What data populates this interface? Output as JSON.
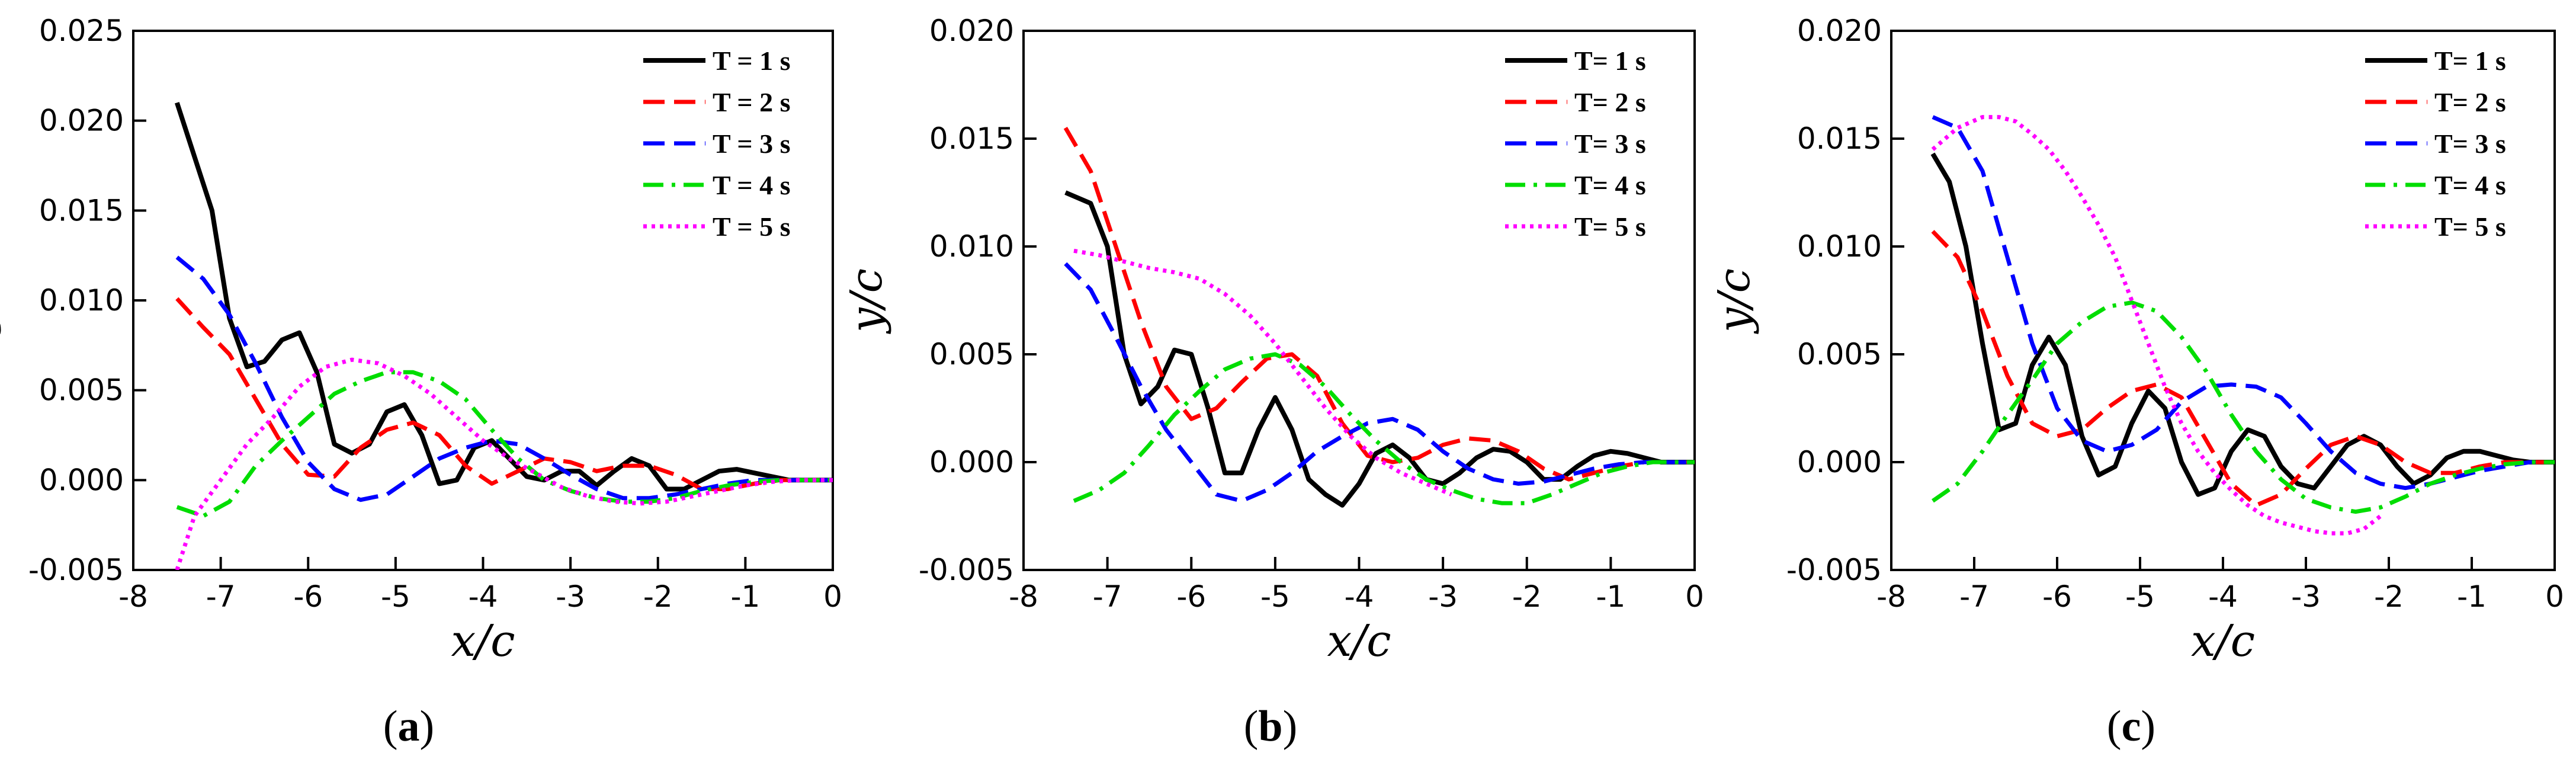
{
  "chart_data": [
    {
      "panel_label": "a",
      "type": "line",
      "xlabel": "x/c",
      "ylabel": "y/c",
      "xlim": [
        -8,
        0
      ],
      "ylim": [
        -0.005,
        0.025
      ],
      "xticks": [
        "-8",
        "-7",
        "-6",
        "-5",
        "-4",
        "-3",
        "-2",
        "-1",
        "0"
      ],
      "yticks": [
        "-0.005",
        "0.000",
        "0.005",
        "0.010",
        "0.015",
        "0.020",
        "0.025"
      ],
      "legend_location": "top-right",
      "series": [
        {
          "name": "T = 1 s",
          "color": "#000000",
          "style": "solid",
          "x": [
            -7.5,
            -7.3,
            -7.1,
            -6.9,
            -6.7,
            -6.5,
            -6.3,
            -6.1,
            -5.9,
            -5.7,
            -5.5,
            -5.3,
            -5.1,
            -4.9,
            -4.7,
            -4.5,
            -4.3,
            -4.1,
            -3.9,
            -3.7,
            -3.5,
            -3.3,
            -3.1,
            -2.9,
            -2.7,
            -2.5,
            -2.3,
            -2.1,
            -1.9,
            -1.7,
            -1.5,
            -1.3,
            -1.1,
            -0.9,
            -0.7,
            -0.5,
            -0.3,
            0
          ],
          "y": [
            0.021,
            0.018,
            0.015,
            0.009,
            0.0063,
            0.0066,
            0.0078,
            0.0082,
            0.006,
            0.002,
            0.0015,
            0.002,
            0.0038,
            0.0042,
            0.0025,
            -0.0002,
            0.0,
            0.0018,
            0.0022,
            0.0012,
            0.0002,
            0.0,
            0.0005,
            0.0005,
            -0.0003,
            0.0005,
            0.0012,
            0.0008,
            -0.0005,
            -0.0005,
            0.0,
            0.0005,
            0.0006,
            0.0004,
            0.0002,
            0.0,
            0.0,
            0.0
          ]
        },
        {
          "name": "T =  2 s",
          "color": "#ff0000",
          "style": "dashed",
          "x": [
            -7.5,
            -7.2,
            -6.9,
            -6.6,
            -6.3,
            -6.0,
            -5.7,
            -5.4,
            -5.1,
            -4.8,
            -4.5,
            -4.2,
            -3.9,
            -3.6,
            -3.3,
            -3.0,
            -2.7,
            -2.4,
            -2.1,
            -1.8,
            -1.5,
            -1.2,
            -0.9,
            -0.6,
            -0.3,
            0
          ],
          "y": [
            0.0101,
            0.0085,
            0.007,
            0.0045,
            0.002,
            0.0003,
            0.0002,
            0.0018,
            0.0028,
            0.0032,
            0.0025,
            0.0008,
            -0.0002,
            0.0005,
            0.0012,
            0.001,
            0.0005,
            0.0008,
            0.0008,
            0.0003,
            -0.0005,
            -0.0005,
            -0.0002,
            0.0,
            0.0,
            0.0
          ]
        },
        {
          "name": "T =  3 s",
          "color": "#0000ff",
          "style": "dashed",
          "x": [
            -7.5,
            -7.2,
            -6.9,
            -6.6,
            -6.3,
            -6.0,
            -5.7,
            -5.4,
            -5.1,
            -4.8,
            -4.5,
            -4.2,
            -3.9,
            -3.6,
            -3.3,
            -3.0,
            -2.7,
            -2.4,
            -2.1,
            -1.8,
            -1.5,
            -1.2,
            -0.9,
            -0.6,
            -0.3,
            0
          ],
          "y": [
            0.0124,
            0.0112,
            0.0092,
            0.0065,
            0.0035,
            0.001,
            -0.0005,
            -0.0011,
            -0.0008,
            0.0002,
            0.0012,
            0.0018,
            0.0022,
            0.002,
            0.0012,
            0.0003,
            -0.0005,
            -0.001,
            -0.001,
            -0.0008,
            -0.0005,
            -0.0002,
            0.0,
            0.0,
            0.0,
            0.0
          ]
        },
        {
          "name": "T =  4 s",
          "color": "#00dd00",
          "style": "dashdot",
          "x": [
            -7.5,
            -7.2,
            -6.9,
            -6.6,
            -6.3,
            -6.0,
            -5.7,
            -5.4,
            -5.1,
            -4.8,
            -4.5,
            -4.2,
            -3.9,
            -3.6,
            -3.3,
            -3.0,
            -2.7,
            -2.4,
            -2.1,
            -1.8,
            -1.5,
            -1.2,
            -0.9,
            -0.6,
            -0.3,
            0
          ],
          "y": [
            -0.0015,
            -0.002,
            -0.0012,
            0.0008,
            0.0022,
            0.0035,
            0.0048,
            0.0055,
            0.006,
            0.006,
            0.0055,
            0.0045,
            0.0028,
            0.0012,
            0.0,
            -0.0006,
            -0.001,
            -0.0012,
            -0.0012,
            -0.001,
            -0.0006,
            -0.0003,
            -0.0001,
            0.0,
            0.0,
            0.0
          ]
        },
        {
          "name": "T =  5 s",
          "color": "#ff00ff",
          "style": "dotted",
          "x": [
            -7.5,
            -7.3,
            -7.0,
            -6.7,
            -6.4,
            -6.1,
            -5.8,
            -5.5,
            -5.2,
            -4.9,
            -4.6,
            -4.3,
            -4.0,
            -3.7,
            -3.4,
            -3.1,
            -2.8,
            -2.5,
            -2.2,
            -1.9,
            -1.6,
            -1.3,
            -1.0,
            -0.7,
            -0.4,
            0
          ],
          "y": [
            -0.005,
            -0.002,
            0.0,
            0.002,
            0.0035,
            0.0052,
            0.0063,
            0.0067,
            0.0065,
            0.0058,
            0.0048,
            0.0035,
            0.0022,
            0.0012,
            0.0004,
            -0.0004,
            -0.0009,
            -0.0012,
            -0.0013,
            -0.0012,
            -0.0009,
            -0.0006,
            -0.0003,
            -0.0001,
            0.0,
            0.0
          ]
        }
      ]
    },
    {
      "panel_label": "b",
      "type": "line",
      "xlabel": "x/c",
      "ylabel": "y/c",
      "xlim": [
        -8,
        0
      ],
      "ylim": [
        -0.005,
        0.02
      ],
      "xticks": [
        "-8",
        "-7",
        "-6",
        "-5",
        "-4",
        "-3",
        "-2",
        "-1",
        "0"
      ],
      "yticks": [
        "-0.005",
        "0.000",
        "0.005",
        "0.010",
        "0.015",
        "0.020"
      ],
      "legend_location": "top-right",
      "series": [
        {
          "name": "T= 1 s",
          "color": "#000000",
          "style": "solid",
          "x": [
            -7.5,
            -7.2,
            -7.0,
            -6.8,
            -6.6,
            -6.4,
            -6.2,
            -6.0,
            -5.8,
            -5.6,
            -5.4,
            -5.2,
            -5.0,
            -4.8,
            -4.6,
            -4.4,
            -4.2,
            -4.0,
            -3.8,
            -3.6,
            -3.4,
            -3.2,
            -3.0,
            -2.8,
            -2.6,
            -2.4,
            -2.2,
            -2.0,
            -1.8,
            -1.6,
            -1.4,
            -1.2,
            -1.0,
            -0.8,
            -0.6,
            -0.4,
            -0.2,
            0
          ],
          "y": [
            0.0125,
            0.012,
            0.01,
            0.005,
            0.0027,
            0.0035,
            0.0052,
            0.005,
            0.0025,
            -0.0005,
            -0.0005,
            0.0015,
            0.003,
            0.0015,
            -0.0008,
            -0.0015,
            -0.002,
            -0.001,
            0.0004,
            0.0008,
            0.0002,
            -0.0008,
            -0.001,
            -0.0005,
            0.0002,
            0.0006,
            0.0005,
            0.0,
            -0.0008,
            -0.0008,
            -0.0002,
            0.0003,
            0.0005,
            0.0004,
            0.0002,
            0.0,
            0.0,
            0.0
          ]
        },
        {
          "name": "T= 2 s",
          "color": "#ff0000",
          "style": "dashed",
          "x": [
            -7.5,
            -7.2,
            -6.9,
            -6.6,
            -6.3,
            -6.0,
            -5.7,
            -5.4,
            -5.1,
            -4.8,
            -4.5,
            -4.2,
            -3.9,
            -3.6,
            -3.3,
            -3.0,
            -2.7,
            -2.4,
            -2.1,
            -1.8,
            -1.5,
            -1.2,
            -0.9,
            -0.6,
            -0.3,
            0
          ],
          "y": [
            0.0155,
            0.0135,
            0.01,
            0.0065,
            0.0035,
            0.002,
            0.0025,
            0.0037,
            0.0048,
            0.005,
            0.004,
            0.0018,
            0.0003,
            0.0,
            0.0002,
            0.0008,
            0.0011,
            0.001,
            0.0005,
            -0.0003,
            -0.0008,
            -0.0005,
            -0.0002,
            0.0,
            0.0,
            0.0
          ]
        },
        {
          "name": "T= 3 s",
          "color": "#0000ff",
          "style": "dashed",
          "x": [
            -7.5,
            -7.2,
            -6.9,
            -6.6,
            -6.3,
            -6.0,
            -5.7,
            -5.4,
            -5.1,
            -4.8,
            -4.5,
            -4.2,
            -3.9,
            -3.6,
            -3.3,
            -3.0,
            -2.7,
            -2.4,
            -2.1,
            -1.8,
            -1.5,
            -1.2,
            -0.9,
            -0.6,
            -0.3,
            0
          ],
          "y": [
            0.0092,
            0.008,
            0.0058,
            0.0035,
            0.0015,
            0.0,
            -0.0015,
            -0.0018,
            -0.0013,
            -0.0005,
            0.0005,
            0.0012,
            0.0018,
            0.002,
            0.0015,
            0.0005,
            -0.0003,
            -0.0008,
            -0.001,
            -0.0009,
            -0.0006,
            -0.0003,
            -0.0001,
            0.0,
            0.0,
            0.0
          ]
        },
        {
          "name": "T= 4 s",
          "color": "#00dd00",
          "style": "dashdot",
          "x": [
            -7.4,
            -7.1,
            -6.8,
            -6.5,
            -6.2,
            -5.9,
            -5.6,
            -5.3,
            -5.0,
            -4.7,
            -4.4,
            -4.1,
            -3.8,
            -3.5,
            -3.2,
            -2.9,
            -2.6,
            -2.3,
            -2.0,
            -1.7,
            -1.4,
            -1.1,
            -0.8,
            -0.5,
            -0.2,
            0
          ],
          "y": [
            -0.0018,
            -0.0013,
            -0.0005,
            0.0008,
            0.0022,
            0.0033,
            0.0043,
            0.0048,
            0.005,
            0.0045,
            0.0035,
            0.0022,
            0.001,
            0.0,
            -0.0008,
            -0.0013,
            -0.0017,
            -0.0019,
            -0.0019,
            -0.0015,
            -0.001,
            -0.0005,
            -0.0002,
            0.0,
            0.0,
            0.0
          ]
        },
        {
          "name": "T= 5 s",
          "color": "#ff00ff",
          "style": "dotted",
          "x": [
            -7.4,
            -7.1,
            -6.8,
            -6.5,
            -6.2,
            -5.9,
            -5.6,
            -5.3,
            -5.0,
            -4.7,
            -4.4,
            -4.1,
            -3.8,
            -3.5,
            -3.2,
            -2.9
          ],
          "y": [
            0.0098,
            0.0096,
            0.0093,
            0.009,
            0.0088,
            0.0085,
            0.0078,
            0.0068,
            0.0055,
            0.004,
            0.0025,
            0.0012,
            0.0002,
            -0.0005,
            -0.001,
            -0.0015
          ]
        }
      ]
    },
    {
      "panel_label": "c",
      "type": "line",
      "xlabel": "x/c",
      "ylabel": "y/c",
      "xlim": [
        -8,
        0
      ],
      "ylim": [
        -0.005,
        0.02
      ],
      "xticks": [
        "-8",
        "-7",
        "-6",
        "-5",
        "-4",
        "-3",
        "-2",
        "-1",
        "0"
      ],
      "yticks": [
        "-0.005",
        "0.000",
        "0.005",
        "0.010",
        "0.015",
        "0.020"
      ],
      "legend_location": "top-right",
      "series": [
        {
          "name": "T= 1 s",
          "color": "#000000",
          "style": "solid",
          "x": [
            -7.5,
            -7.3,
            -7.1,
            -6.9,
            -6.7,
            -6.5,
            -6.3,
            -6.1,
            -5.9,
            -5.7,
            -5.5,
            -5.3,
            -5.1,
            -4.9,
            -4.7,
            -4.5,
            -4.3,
            -4.1,
            -3.9,
            -3.7,
            -3.5,
            -3.3,
            -3.1,
            -2.9,
            -2.7,
            -2.5,
            -2.3,
            -2.1,
            -1.9,
            -1.7,
            -1.5,
            -1.3,
            -1.1,
            -0.9,
            -0.7,
            -0.5,
            -0.3,
            0
          ],
          "y": [
            0.0143,
            0.013,
            0.01,
            0.0055,
            0.0015,
            0.0018,
            0.0045,
            0.0058,
            0.0045,
            0.0012,
            -0.0006,
            -0.0002,
            0.0018,
            0.0033,
            0.0025,
            0.0,
            -0.0015,
            -0.0012,
            0.0005,
            0.0015,
            0.0012,
            -0.0002,
            -0.001,
            -0.0012,
            -0.0002,
            0.0008,
            0.0012,
            0.0008,
            -0.0002,
            -0.001,
            -0.0006,
            0.0002,
            0.0005,
            0.0005,
            0.0003,
            0.0001,
            0.0,
            0.0
          ]
        },
        {
          "name": "T= 2 s",
          "color": "#ff0000",
          "style": "dashed",
          "x": [
            -7.5,
            -7.2,
            -6.9,
            -6.6,
            -6.3,
            -6.0,
            -5.7,
            -5.4,
            -5.1,
            -4.8,
            -4.5,
            -4.2,
            -3.9,
            -3.6,
            -3.3,
            -3.0,
            -2.7,
            -2.4,
            -2.1,
            -1.8,
            -1.5,
            -1.2,
            -0.9,
            -0.6,
            -0.3,
            0
          ],
          "y": [
            0.0107,
            0.0095,
            0.007,
            0.004,
            0.0018,
            0.0012,
            0.0015,
            0.0025,
            0.0033,
            0.0036,
            0.003,
            0.001,
            -0.001,
            -0.002,
            -0.0015,
            -0.0003,
            0.0008,
            0.0012,
            0.0008,
            0.0,
            -0.0005,
            -0.0005,
            -0.0002,
            0.0,
            0.0,
            0.0
          ]
        },
        {
          "name": "T= 3 s",
          "color": "#0000ff",
          "style": "dashed",
          "x": [
            -7.5,
            -7.2,
            -6.9,
            -6.6,
            -6.3,
            -6.0,
            -5.7,
            -5.4,
            -5.1,
            -4.8,
            -4.5,
            -4.2,
            -3.9,
            -3.6,
            -3.3,
            -3.0,
            -2.7,
            -2.4,
            -2.1,
            -1.8,
            -1.5,
            -1.2,
            -0.9,
            -0.6,
            -0.3,
            0
          ],
          "y": [
            0.016,
            0.0155,
            0.0135,
            0.0095,
            0.0055,
            0.0025,
            0.001,
            0.0005,
            0.0008,
            0.0015,
            0.0028,
            0.0035,
            0.0036,
            0.0035,
            0.003,
            0.0018,
            0.0005,
            -0.0005,
            -0.001,
            -0.0012,
            -0.001,
            -0.0007,
            -0.0004,
            -0.0002,
            0.0,
            0.0
          ]
        },
        {
          "name": "T= 4 s",
          "color": "#00dd00",
          "style": "dashdot",
          "x": [
            -7.5,
            -7.2,
            -6.9,
            -6.6,
            -6.3,
            -6.0,
            -5.7,
            -5.4,
            -5.1,
            -4.8,
            -4.5,
            -4.2,
            -3.9,
            -3.6,
            -3.3,
            -3.0,
            -2.7,
            -2.4,
            -2.1,
            -1.8,
            -1.5,
            -1.2,
            -0.9,
            -0.6,
            -0.3,
            0
          ],
          "y": [
            -0.0018,
            -0.001,
            0.0005,
            0.0022,
            0.0038,
            0.0055,
            0.0065,
            0.0072,
            0.0074,
            0.007,
            0.0058,
            0.0042,
            0.0022,
            0.0005,
            -0.0008,
            -0.0017,
            -0.0021,
            -0.0023,
            -0.0021,
            -0.0016,
            -0.001,
            -0.0006,
            -0.0003,
            -0.0001,
            0.0,
            0.0
          ]
        },
        {
          "name": "T= 5 s",
          "color": "#ff00ff",
          "style": "dotted",
          "x": [
            -7.5,
            -7.2,
            -6.9,
            -6.7,
            -6.5,
            -6.3,
            -6.1,
            -5.9,
            -5.7,
            -5.5,
            -5.3,
            -5.1,
            -4.9,
            -4.7,
            -4.5,
            -4.3,
            -4.1,
            -3.9,
            -3.7,
            -3.5,
            -3.3,
            -3.1,
            -2.9,
            -2.7,
            -2.5,
            -2.3,
            -2.1
          ],
          "y": [
            0.0145,
            0.0155,
            0.016,
            0.016,
            0.0158,
            0.0152,
            0.0145,
            0.0135,
            0.0123,
            0.011,
            0.0095,
            0.0075,
            0.0055,
            0.0035,
            0.0018,
            0.0005,
            -0.0005,
            -0.0013,
            -0.002,
            -0.0025,
            -0.0028,
            -0.003,
            -0.0032,
            -0.0033,
            -0.0033,
            -0.0031,
            -0.0025
          ]
        }
      ]
    }
  ]
}
